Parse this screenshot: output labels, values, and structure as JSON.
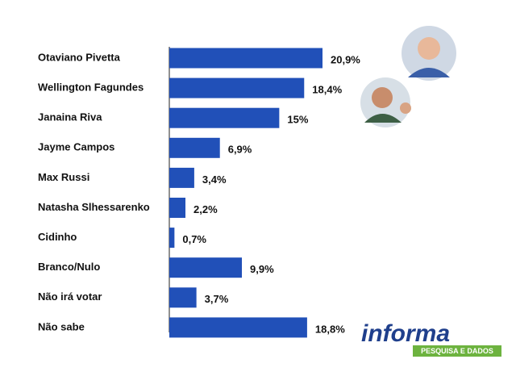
{
  "chart_data": {
    "type": "bar",
    "orientation": "horizontal",
    "categories": [
      "Otaviano Pivetta",
      "Wellington Fagundes",
      "Janaina Riva",
      "Jayme Campos",
      "Max Russi",
      "Natasha Slhessarenko",
      "Cidinho",
      "Branco/Nulo",
      "Não irá votar",
      "Não sabe"
    ],
    "values": [
      20.9,
      18.4,
      15,
      6.9,
      3.4,
      2.2,
      0.7,
      9.9,
      3.7,
      18.8
    ],
    "value_labels": [
      "20,9%",
      "18,4%",
      "15%",
      "6,9%",
      "3,4%",
      "2,2%",
      "0,7%",
      "9,9%",
      "3,7%",
      "18,8%"
    ],
    "color": "#2150b8"
  },
  "logo": {
    "name": "informa",
    "tagline": "PESQUISA E DADOS"
  }
}
